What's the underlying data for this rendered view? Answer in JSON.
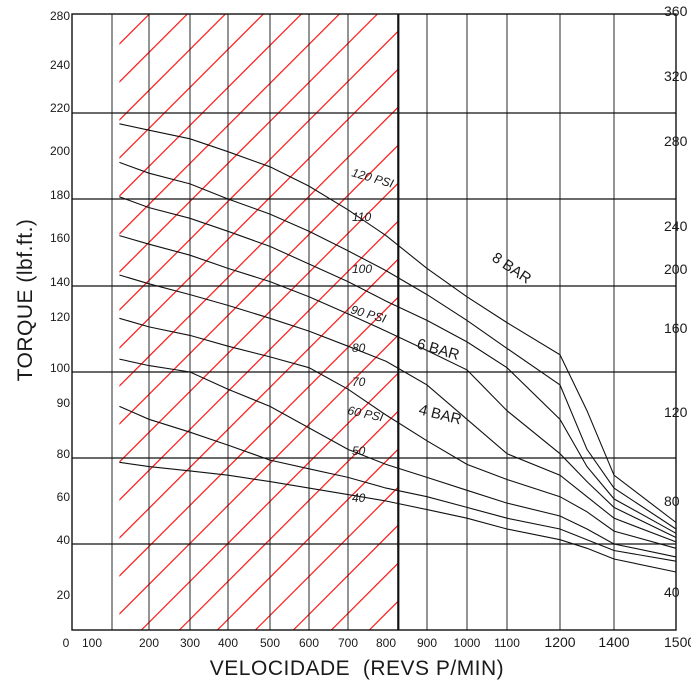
{
  "chart_data": {
    "type": "line",
    "title": "",
    "xlabel": "VELOCIDADE  (REVS P/MIN)",
    "ylabel": "TORQUE (lbf.ft.)",
    "x_ticks": [
      "0",
      "100",
      "200",
      "300",
      "400",
      "500",
      "600",
      "700",
      "800",
      "900",
      "1000",
      "1100",
      "1200",
      "1400",
      "1500"
    ],
    "y_ticks_left": [
      "280",
      "240",
      "220",
      "200",
      "180",
      "160",
      "140",
      "120",
      "100",
      "90",
      "80",
      "60",
      "40",
      "20"
    ],
    "y_ticks_right": [
      "360",
      "320",
      "280",
      "240",
      "200",
      "160",
      "120",
      "80",
      "40"
    ],
    "ylim": [
      0,
      280
    ],
    "grid": true,
    "hatched_region": {
      "x_from": 120,
      "x_to": 830,
      "color": "#ff1a1a"
    },
    "limit_line_x": 830,
    "labels": {
      "c120": "120 PSI",
      "c110": "110",
      "c100": "100",
      "c90": "90 PSI",
      "c80": "80",
      "c70": "70",
      "c60": "60 PSI",
      "c50": "50",
      "c40": "40",
      "bar8": "8 BAR",
      "bar6": "6 BAR",
      "bar4": "4 BAR"
    },
    "series": [
      {
        "x": [
          120,
          200,
          300,
          400,
          500,
          600,
          700,
          800,
          900,
          1000,
          1100,
          1200,
          1300,
          1400,
          1500
        ],
        "values": [
          215,
          212,
          208,
          202,
          195,
          186,
          175,
          163,
          148,
          135,
          123,
          108,
          91,
          72,
          50
        ]
      },
      {
        "x": [
          120,
          200,
          300,
          400,
          500,
          600,
          700,
          800,
          900,
          1000,
          1100,
          1200,
          1300,
          1400,
          1500
        ],
        "values": [
          197,
          192,
          187,
          180,
          173,
          165,
          156,
          147,
          136,
          124,
          111,
          97,
          82,
          66,
          47
        ]
      },
      {
        "x": [
          120,
          200,
          300,
          400,
          500,
          600,
          700,
          800,
          900,
          1000,
          1100,
          1200,
          1300,
          1400,
          1500
        ],
        "values": [
          181,
          176,
          171,
          165,
          158,
          150,
          142,
          133,
          124,
          114,
          102,
          89,
          76,
          61,
          45
        ]
      },
      {
        "x": [
          120,
          200,
          300,
          400,
          500,
          600,
          700,
          800,
          900,
          1000,
          1100,
          1200,
          1300,
          1400,
          1500
        ],
        "values": [
          163,
          159,
          154,
          148,
          142,
          135,
          127,
          119,
          110,
          101,
          91,
          81,
          69,
          57,
          43
        ]
      },
      {
        "x": [
          120,
          200,
          300,
          400,
          500,
          600,
          700,
          800,
          900,
          1000,
          1100,
          1200,
          1300,
          1400,
          1500
        ],
        "values": [
          145,
          141,
          136,
          131,
          125,
          119,
          112,
          105,
          97,
          89,
          81,
          72,
          62,
          52,
          41
        ]
      },
      {
        "x": [
          120,
          200,
          300,
          400,
          500,
          600,
          700,
          800,
          900,
          1000,
          1100,
          1200,
          1300,
          1400,
          1500
        ],
        "values": [
          125,
          121,
          117,
          112,
          107,
          102,
          96,
          90,
          84,
          77,
          70,
          62,
          55,
          46,
          38
        ]
      },
      {
        "x": [
          120,
          200,
          300,
          400,
          500,
          600,
          700,
          800,
          900,
          1000,
          1100,
          1200,
          1300,
          1400,
          1500
        ],
        "values": [
          106,
          103,
          100,
          96,
          92,
          87,
          82,
          77,
          71,
          65,
          59,
          53,
          47,
          40,
          34
        ]
      },
      {
        "x": [
          120,
          200,
          300,
          400,
          500,
          600,
          700,
          800,
          900,
          1000,
          1100,
          1200,
          1300,
          1400,
          1500
        ],
        "values": [
          92,
          89,
          86,
          83,
          79,
          75,
          71,
          66,
          62,
          57,
          52,
          47,
          42,
          37,
          32
        ]
      },
      {
        "x": [
          120,
          200,
          300,
          400,
          500,
          600,
          700,
          800,
          900,
          1000,
          1100,
          1200,
          1300,
          1400,
          1500
        ],
        "values": [
          78,
          76,
          74,
          72,
          69,
          66,
          63,
          60,
          56,
          52,
          47,
          42,
          38,
          33,
          27
        ]
      }
    ]
  }
}
